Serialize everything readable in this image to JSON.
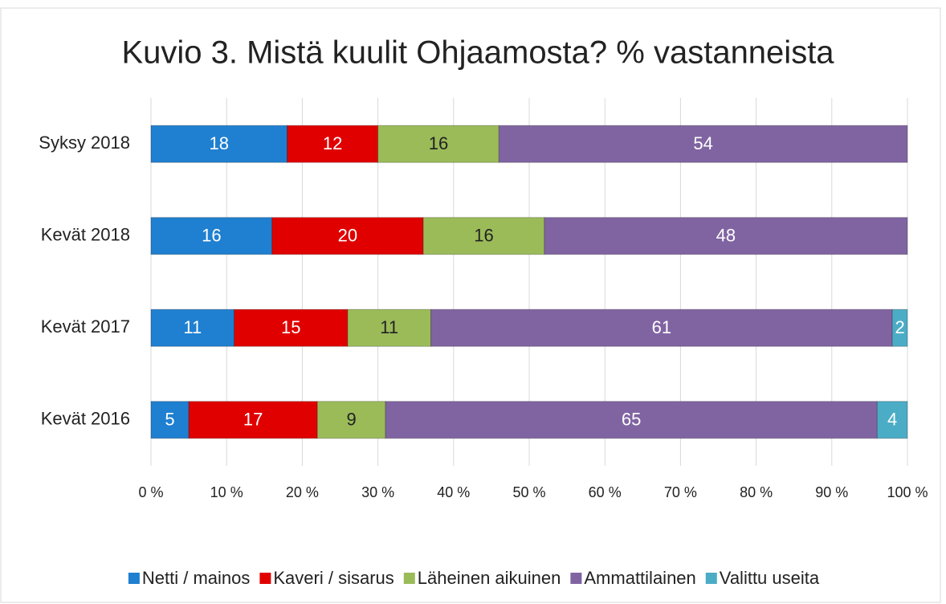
{
  "chart_data": {
    "type": "bar",
    "orientation": "horizontal",
    "stacked": true,
    "title": "Kuvio 3. Mistä kuulit Ohjaamosta? % vastanneista",
    "categories": [
      "Syksy 2018",
      "Kevät 2018",
      "Kevät 2017",
      "Kevät 2016"
    ],
    "series": [
      {
        "name": "Netti / mainos",
        "color": "#1f7fd0",
        "label_color": "#ffffff",
        "values": [
          18,
          16,
          11,
          5
        ]
      },
      {
        "name": "Kaveri / sisarus",
        "color": "#e00000",
        "label_color": "#ffffff",
        "values": [
          12,
          20,
          15,
          17
        ]
      },
      {
        "name": "Läheinen aikuinen",
        "color": "#9bbb59",
        "label_color": "#222222",
        "values": [
          16,
          16,
          11,
          9
        ]
      },
      {
        "name": "Ammattilainen",
        "color": "#8064a2",
        "label_color": "#ffffff",
        "values": [
          54,
          48,
          61,
          65
        ]
      },
      {
        "name": "Valittu useita",
        "color": "#4bacc6",
        "label_color": "#ffffff",
        "values": [
          null,
          null,
          2,
          4
        ]
      }
    ],
    "xlim": [
      0,
      100
    ],
    "xticks": [
      {
        "value": 0,
        "label": "0 %"
      },
      {
        "value": 10,
        "label": "10 %"
      },
      {
        "value": 20,
        "label": "20 %"
      },
      {
        "value": 30,
        "label": "30 %"
      },
      {
        "value": 40,
        "label": "40 %"
      },
      {
        "value": 50,
        "label": "50 %"
      },
      {
        "value": 60,
        "label": "60 %"
      },
      {
        "value": 70,
        "label": "70 %"
      },
      {
        "value": 80,
        "label": "80 %"
      },
      {
        "value": 90,
        "label": "90 %"
      },
      {
        "value": 100,
        "label": "100 %"
      }
    ],
    "grid": true,
    "legend": "bottom"
  }
}
